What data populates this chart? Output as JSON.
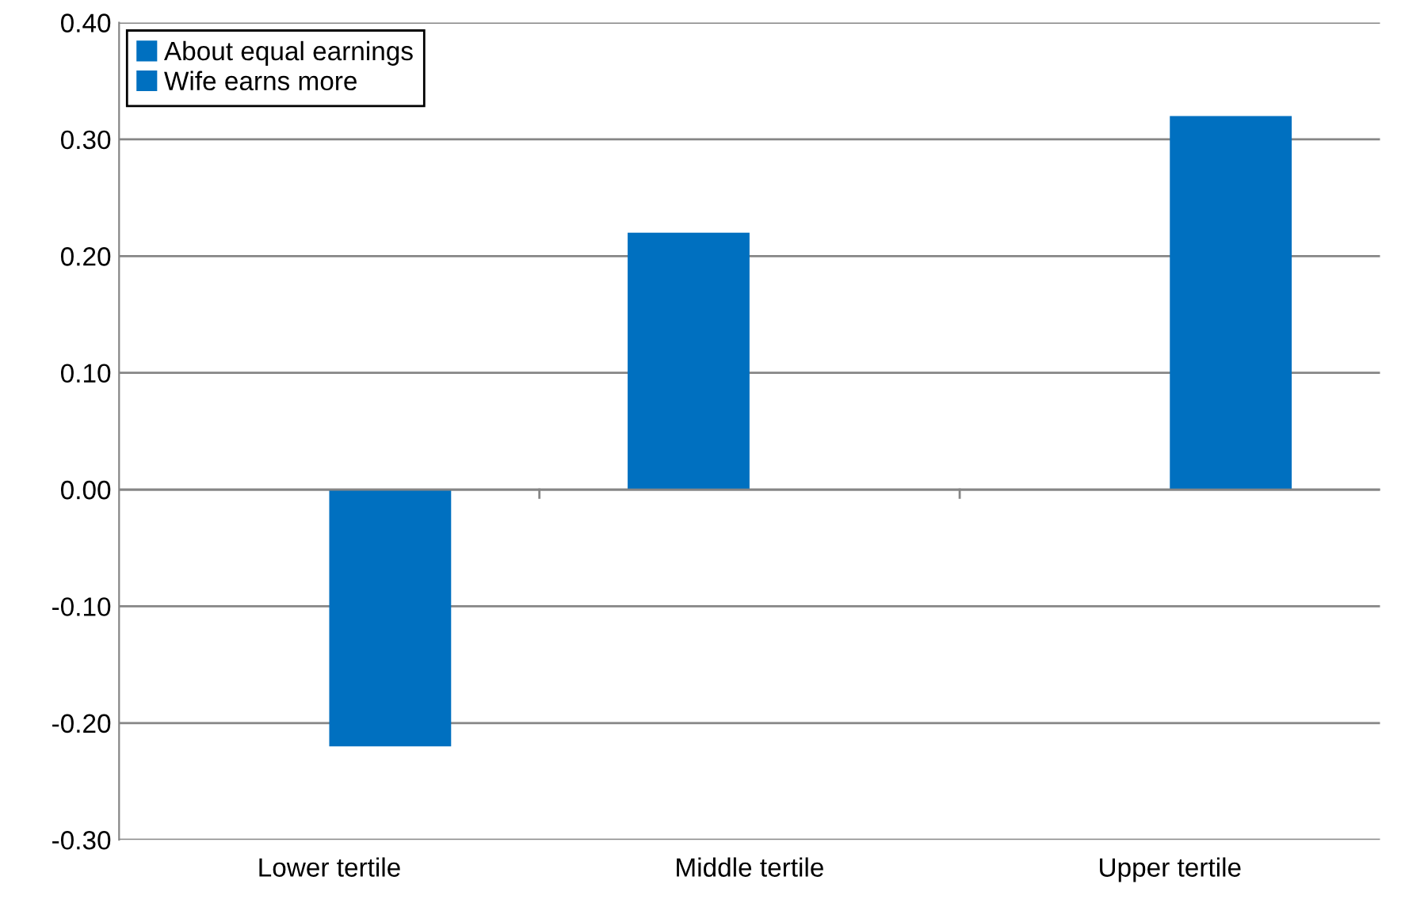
{
  "chart_data": {
    "type": "bar",
    "categories": [
      "Lower tertile",
      "Middle tertile",
      "Upper tertile"
    ],
    "series": [
      {
        "name": "About equal earnings",
        "color": "#0070c0",
        "values": [
          null,
          0.22,
          null
        ]
      },
      {
        "name": "Wife earns more",
        "color": "#0070c0",
        "values": [
          -0.22,
          null,
          0.32
        ]
      }
    ],
    "ylim": [
      -0.3,
      0.4
    ],
    "yticks": [
      {
        "value": -0.3,
        "label": "-0.30"
      },
      {
        "value": -0.2,
        "label": "-0.20"
      },
      {
        "value": -0.1,
        "label": "-0.10"
      },
      {
        "value": 0,
        "label": "0.00"
      },
      {
        "value": 0.1,
        "label": "0.10"
      },
      {
        "value": 0.2,
        "label": "0.20"
      },
      {
        "value": 0.3,
        "label": "0.30"
      },
      {
        "value": 0.4,
        "label": "0.40"
      }
    ],
    "grid": "y",
    "legend": "top left"
  }
}
